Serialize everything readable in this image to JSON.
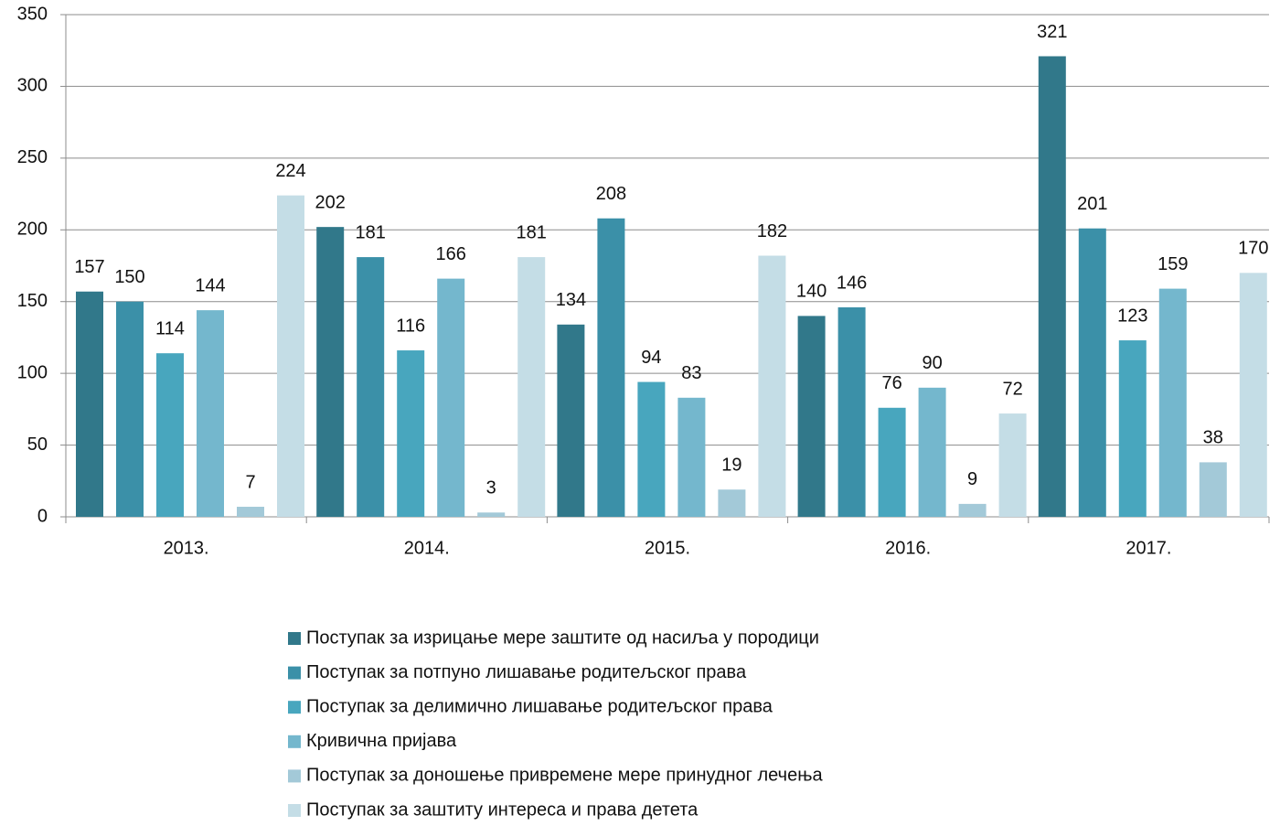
{
  "chart_data": {
    "type": "bar",
    "categories": [
      "2013.",
      "2014.",
      "2015.",
      "2016.",
      "2017."
    ],
    "series": [
      {
        "name": "Поступак за изрицање мере заштите од насиља у породици",
        "color": "#31788a",
        "values": [
          157,
          202,
          134,
          140,
          321
        ]
      },
      {
        "name": "Поступак за потпуно лишавање родитељског права",
        "color": "#3b90a8",
        "values": [
          150,
          181,
          208,
          146,
          201
        ]
      },
      {
        "name": "Поступак за делимично лишавање родитељског права",
        "color": "#48a6be",
        "values": [
          114,
          116,
          94,
          76,
          123
        ]
      },
      {
        "name": "Кривична пријава",
        "color": "#74b7cd",
        "values": [
          144,
          166,
          83,
          90,
          159
        ]
      },
      {
        "name": "Поступак за доношење привремене мере принудног лечења",
        "color": "#a3c9d8",
        "values": [
          7,
          3,
          19,
          9,
          38
        ]
      },
      {
        "name": "Поступак за заштиту интереса и права детета",
        "color": "#c4dde6",
        "values": [
          224,
          181,
          182,
          72,
          170
        ]
      }
    ],
    "ylim": [
      0,
      350
    ],
    "yticks": [
      0,
      50,
      100,
      150,
      200,
      250,
      300,
      350
    ],
    "grid": true,
    "legend": "bottom"
  }
}
